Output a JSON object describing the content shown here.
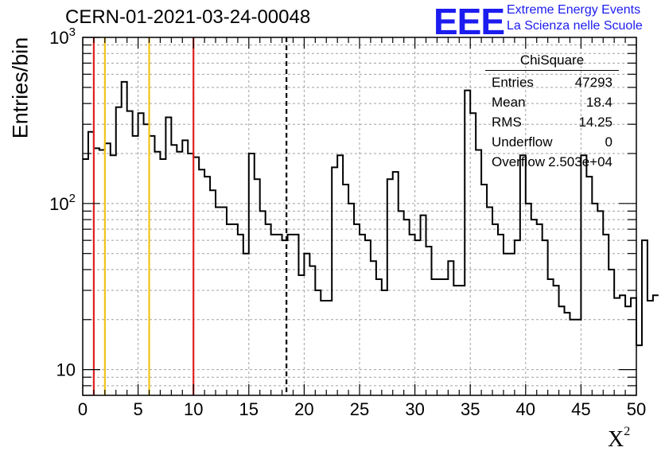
{
  "title": "CERN-01-2021-03-24-00048",
  "logo": {
    "mark": "EEE",
    "line1": "Extreme Energy Events",
    "line2": "La Scienza nelle Scuole",
    "color": "#1c1cf0"
  },
  "stats": {
    "name": "ChiSquare",
    "rows": [
      {
        "label": "Entries",
        "value": "47293"
      },
      {
        "label": "Mean",
        "value": "18.4"
      },
      {
        "label": "RMS",
        "value": "14.25"
      },
      {
        "label": "Underflow",
        "value": "0"
      },
      {
        "label": "Overflow",
        "value": "2.503e+04"
      }
    ]
  },
  "chart_data": {
    "type": "histogram",
    "title": "CERN-01-2021-03-24-00048",
    "xlabel": "X",
    "xlabel_sup": "2",
    "ylabel": "Entries/bin",
    "xlim": [
      0,
      50
    ],
    "ylim": [
      7,
      1000
    ],
    "yscale": "log",
    "grid": true,
    "bin_width": 0.5,
    "xticks": [
      "0",
      "5",
      "10",
      "15",
      "20",
      "25",
      "30",
      "35",
      "40",
      "45",
      "50"
    ],
    "yticks": [
      {
        "value": 10,
        "label": "10"
      },
      {
        "value": 100,
        "label": "10",
        "exp": "2"
      },
      {
        "value": 1000,
        "label": "10",
        "exp": "3"
      }
    ],
    "values": [
      185,
      270,
      215,
      210,
      230,
      195,
      380,
      540,
      360,
      255,
      350,
      300,
      255,
      205,
      185,
      330,
      225,
      205,
      240,
      200,
      190,
      160,
      145,
      120,
      95,
      95,
      75,
      75,
      65,
      50,
      200,
      140,
      90,
      75,
      65,
      65,
      60,
      65,
      65,
      37,
      50,
      42,
      30,
      26,
      26,
      165,
      195,
      130,
      100,
      75,
      65,
      60,
      45,
      35,
      30,
      140,
      155,
      90,
      80,
      65,
      60,
      85,
      55,
      35,
      35,
      35,
      45,
      32,
      32,
      480,
      350,
      210,
      130,
      95,
      75,
      65,
      50,
      50,
      60,
      195,
      100,
      80,
      75,
      60,
      35,
      32,
      24,
      22,
      20,
      20,
      195,
      145,
      100,
      90,
      65,
      40,
      27,
      28,
      24,
      27,
      14,
      60,
      26,
      28
    ],
    "vlines": [
      {
        "x": 1,
        "color": "#e02020",
        "style": "solid"
      },
      {
        "x": 2,
        "color": "#f2c318",
        "style": "solid"
      },
      {
        "x": 6,
        "color": "#f2c318",
        "style": "solid"
      },
      {
        "x": 10,
        "color": "#e02020",
        "style": "solid"
      },
      {
        "x": 18.4,
        "color": "#000000",
        "style": "dashed"
      }
    ]
  }
}
